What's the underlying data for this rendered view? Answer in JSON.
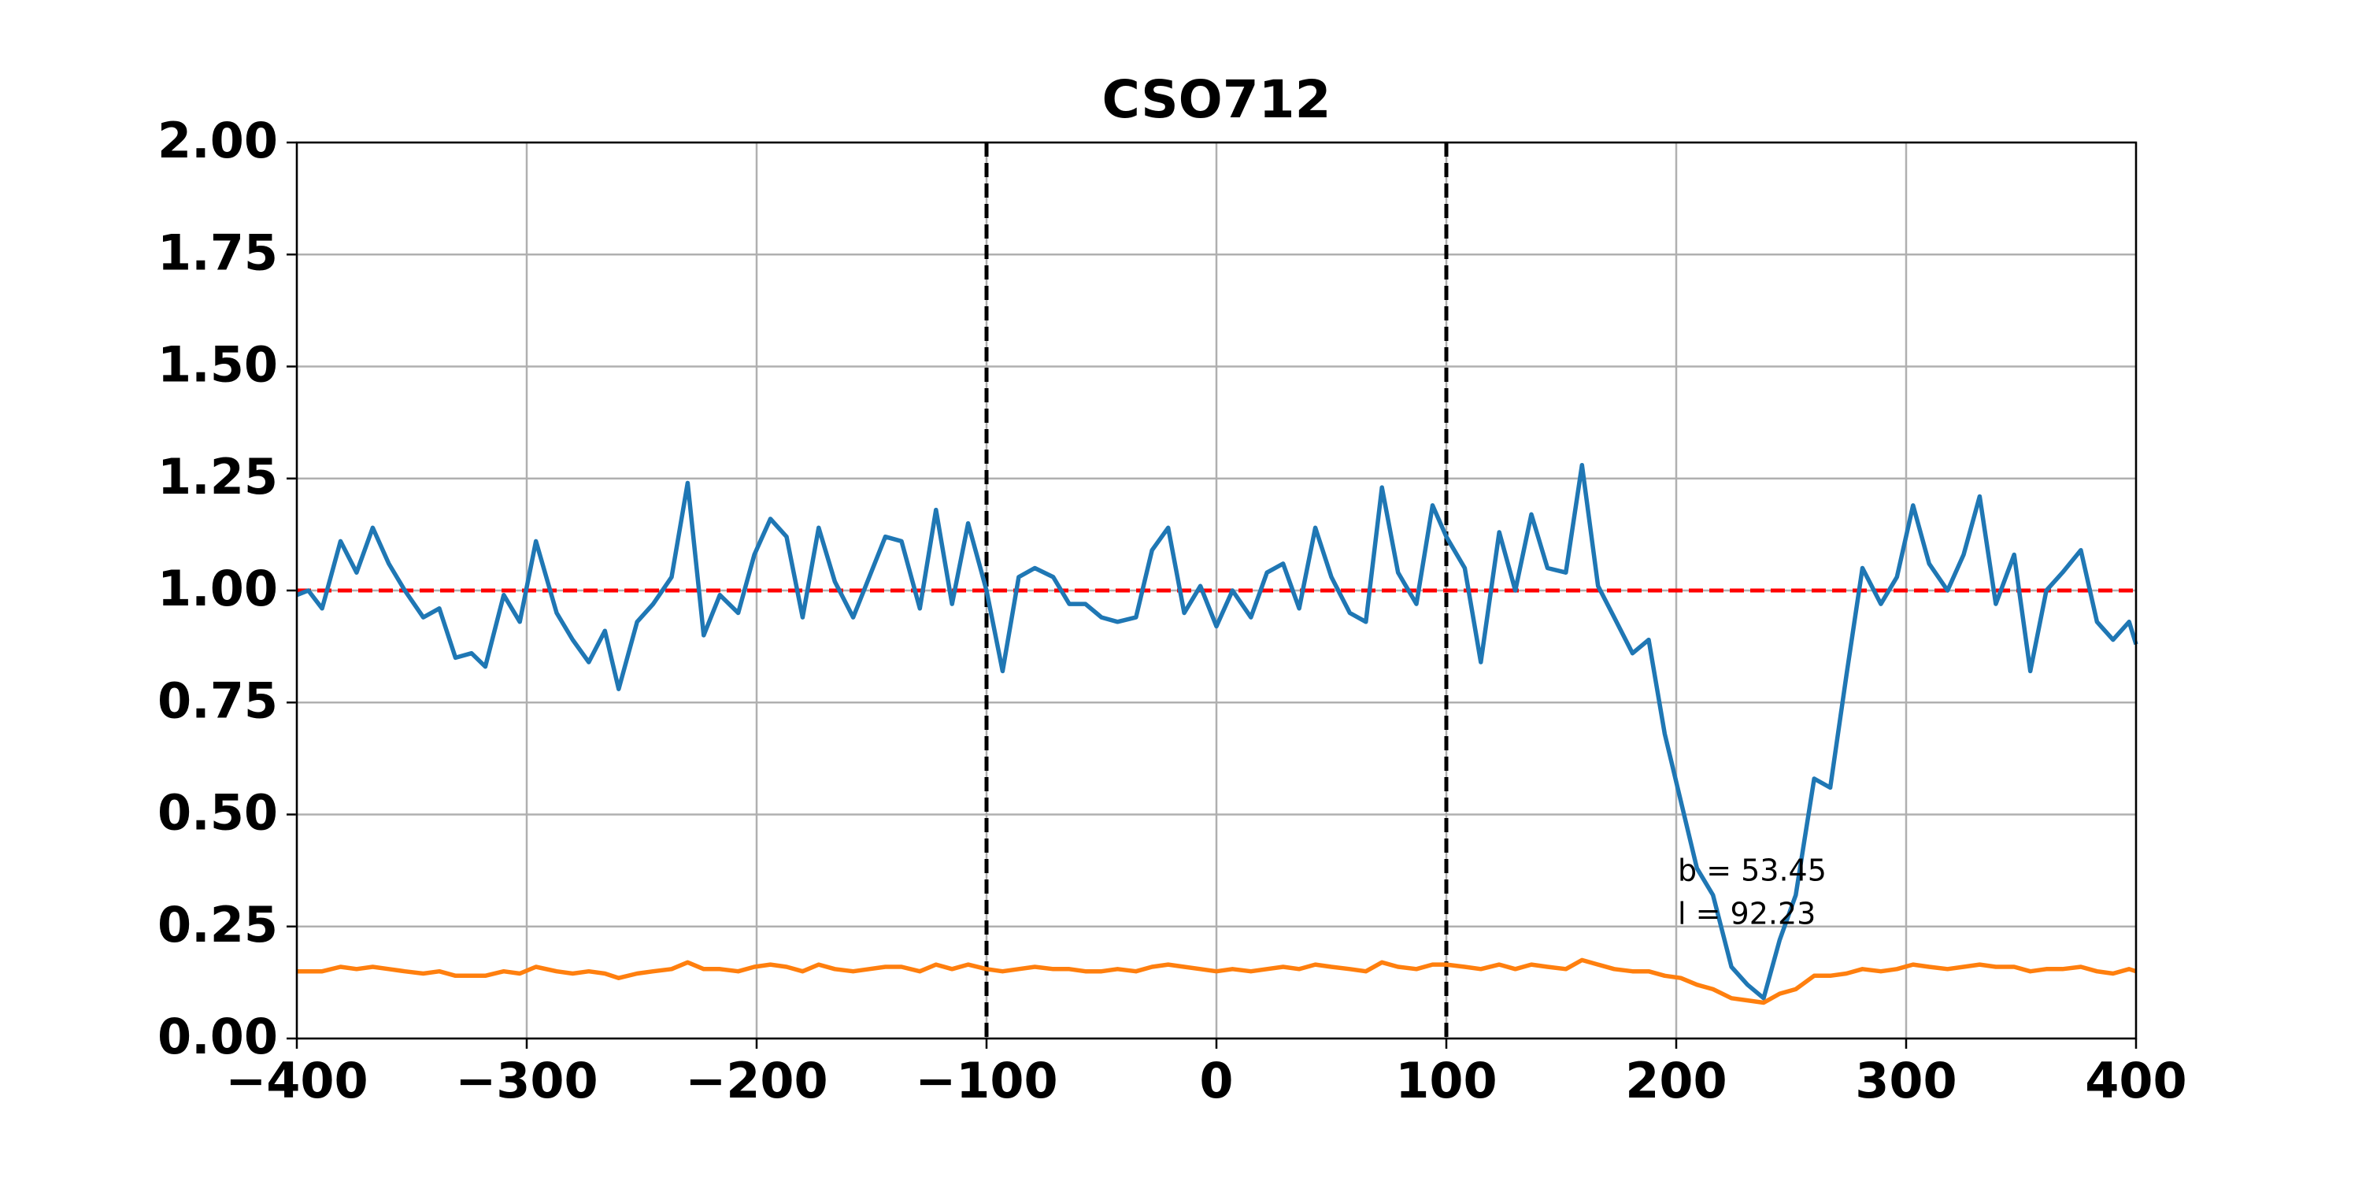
{
  "chart_data": {
    "type": "line",
    "title": "CSO712",
    "x": [
      -400,
      -395,
      -389,
      -381,
      -374,
      -367,
      -360,
      -353,
      -345,
      -338,
      -331,
      -324,
      -318,
      -310,
      -303,
      -296,
      -287,
      -280,
      -273,
      -266,
      -260,
      -252,
      -245,
      -237,
      -230,
      -223,
      -216,
      -208,
      -201,
      -194,
      -187,
      -180,
      -173,
      -166,
      -158,
      -151,
      -144,
      -137,
      -129,
      -122,
      -115,
      -108,
      -100,
      -93,
      -86,
      -79,
      -71,
      -64,
      -57,
      -50,
      -43,
      -35,
      -28,
      -21,
      -14,
      -7,
      0,
      7,
      15,
      22,
      29,
      36,
      43,
      50,
      58,
      65,
      72,
      79,
      87,
      94,
      100,
      108,
      115,
      123,
      130,
      137,
      144,
      152,
      159,
      166,
      173,
      181,
      188,
      195,
      202,
      209,
      216,
      224,
      231,
      238,
      245,
      252,
      260,
      267,
      274,
      281,
      289,
      296,
      303,
      310,
      318,
      325,
      332,
      339,
      347,
      354,
      361,
      368,
      376,
      383,
      390,
      397,
      400
    ],
    "series": [
      {
        "color": "#1f77b4",
        "values": [
          0.99,
          1.0,
          0.96,
          1.11,
          1.04,
          1.14,
          1.06,
          1.0,
          0.94,
          0.96,
          0.85,
          0.86,
          0.83,
          0.99,
          0.93,
          1.11,
          0.95,
          0.89,
          0.84,
          0.91,
          0.78,
          0.93,
          0.97,
          1.03,
          1.24,
          0.9,
          0.99,
          0.95,
          1.08,
          1.16,
          1.12,
          0.94,
          1.14,
          1.02,
          0.94,
          1.03,
          1.12,
          1.11,
          0.96,
          1.18,
          0.97,
          1.15,
          1.0,
          0.82,
          1.03,
          1.05,
          1.03,
          0.97,
          0.97,
          0.94,
          0.93,
          0.94,
          1.09,
          1.14,
          0.95,
          1.01,
          0.92,
          1.0,
          0.94,
          1.04,
          1.06,
          0.96,
          1.14,
          1.03,
          0.95,
          0.93,
          1.23,
          1.04,
          0.97,
          1.19,
          1.12,
          1.05,
          0.84,
          1.13,
          1.0,
          1.17,
          1.05,
          1.04,
          1.28,
          1.01,
          0.94,
          0.86,
          0.89,
          0.68,
          0.53,
          0.38,
          0.32,
          0.16,
          0.12,
          0.09,
          0.22,
          0.32,
          0.58,
          0.56,
          0.81,
          1.05,
          0.97,
          1.03,
          1.19,
          1.06,
          1.0,
          1.08,
          1.21,
          0.97,
          1.08,
          0.82,
          1.0,
          1.04,
          1.09,
          0.93,
          0.89,
          0.93,
          0.88
        ]
      },
      {
        "color": "#ff7f0e",
        "values": [
          0.15,
          0.15,
          0.15,
          0.16,
          0.155,
          0.16,
          0.155,
          0.15,
          0.145,
          0.15,
          0.14,
          0.14,
          0.14,
          0.15,
          0.145,
          0.16,
          0.15,
          0.145,
          0.15,
          0.145,
          0.135,
          0.145,
          0.15,
          0.155,
          0.17,
          0.155,
          0.155,
          0.15,
          0.16,
          0.165,
          0.16,
          0.15,
          0.165,
          0.155,
          0.15,
          0.155,
          0.16,
          0.16,
          0.15,
          0.165,
          0.155,
          0.165,
          0.155,
          0.15,
          0.155,
          0.16,
          0.155,
          0.155,
          0.15,
          0.15,
          0.155,
          0.15,
          0.16,
          0.165,
          0.16,
          0.155,
          0.15,
          0.155,
          0.15,
          0.155,
          0.16,
          0.155,
          0.165,
          0.16,
          0.155,
          0.15,
          0.17,
          0.16,
          0.155,
          0.165,
          0.165,
          0.16,
          0.155,
          0.165,
          0.155,
          0.165,
          0.16,
          0.155,
          0.175,
          0.165,
          0.155,
          0.15,
          0.15,
          0.14,
          0.135,
          0.12,
          0.11,
          0.09,
          0.085,
          0.08,
          0.1,
          0.11,
          0.14,
          0.14,
          0.145,
          0.155,
          0.15,
          0.155,
          0.165,
          0.16,
          0.155,
          0.16,
          0.165,
          0.16,
          0.16,
          0.15,
          0.155,
          0.155,
          0.16,
          0.15,
          0.145,
          0.155,
          0.15
        ]
      }
    ],
    "hline": {
      "value": 1,
      "color": "#ff0000"
    },
    "vlines": {
      "values": [
        -100,
        100
      ],
      "color": "#000000"
    },
    "annotations": [
      "b = 53.45",
      "l = 92.23"
    ],
    "xlim": [
      -400,
      400
    ],
    "xticks": [
      {
        "value": -400,
        "label": "−400"
      },
      {
        "value": -300,
        "label": "−300"
      },
      {
        "value": -200,
        "label": "−200"
      },
      {
        "value": -100,
        "label": "−100"
      },
      0,
      100,
      200,
      300,
      400
    ],
    "ylim": [
      0,
      2
    ],
    "yticks": [
      {
        "value": 0,
        "label": "0.00"
      },
      {
        "value": 0.25,
        "label": "0.25"
      },
      {
        "value": 0.5,
        "label": "0.50"
      },
      {
        "value": 0.75,
        "label": "0.75"
      },
      {
        "value": 1,
        "label": "1.00"
      },
      {
        "value": 1.25,
        "label": "1.25"
      },
      {
        "value": 1.5,
        "label": "1.50"
      },
      {
        "value": 1.75,
        "label": "1.75"
      },
      {
        "value": 2,
        "label": "2.00"
      }
    ],
    "grid": true
  }
}
